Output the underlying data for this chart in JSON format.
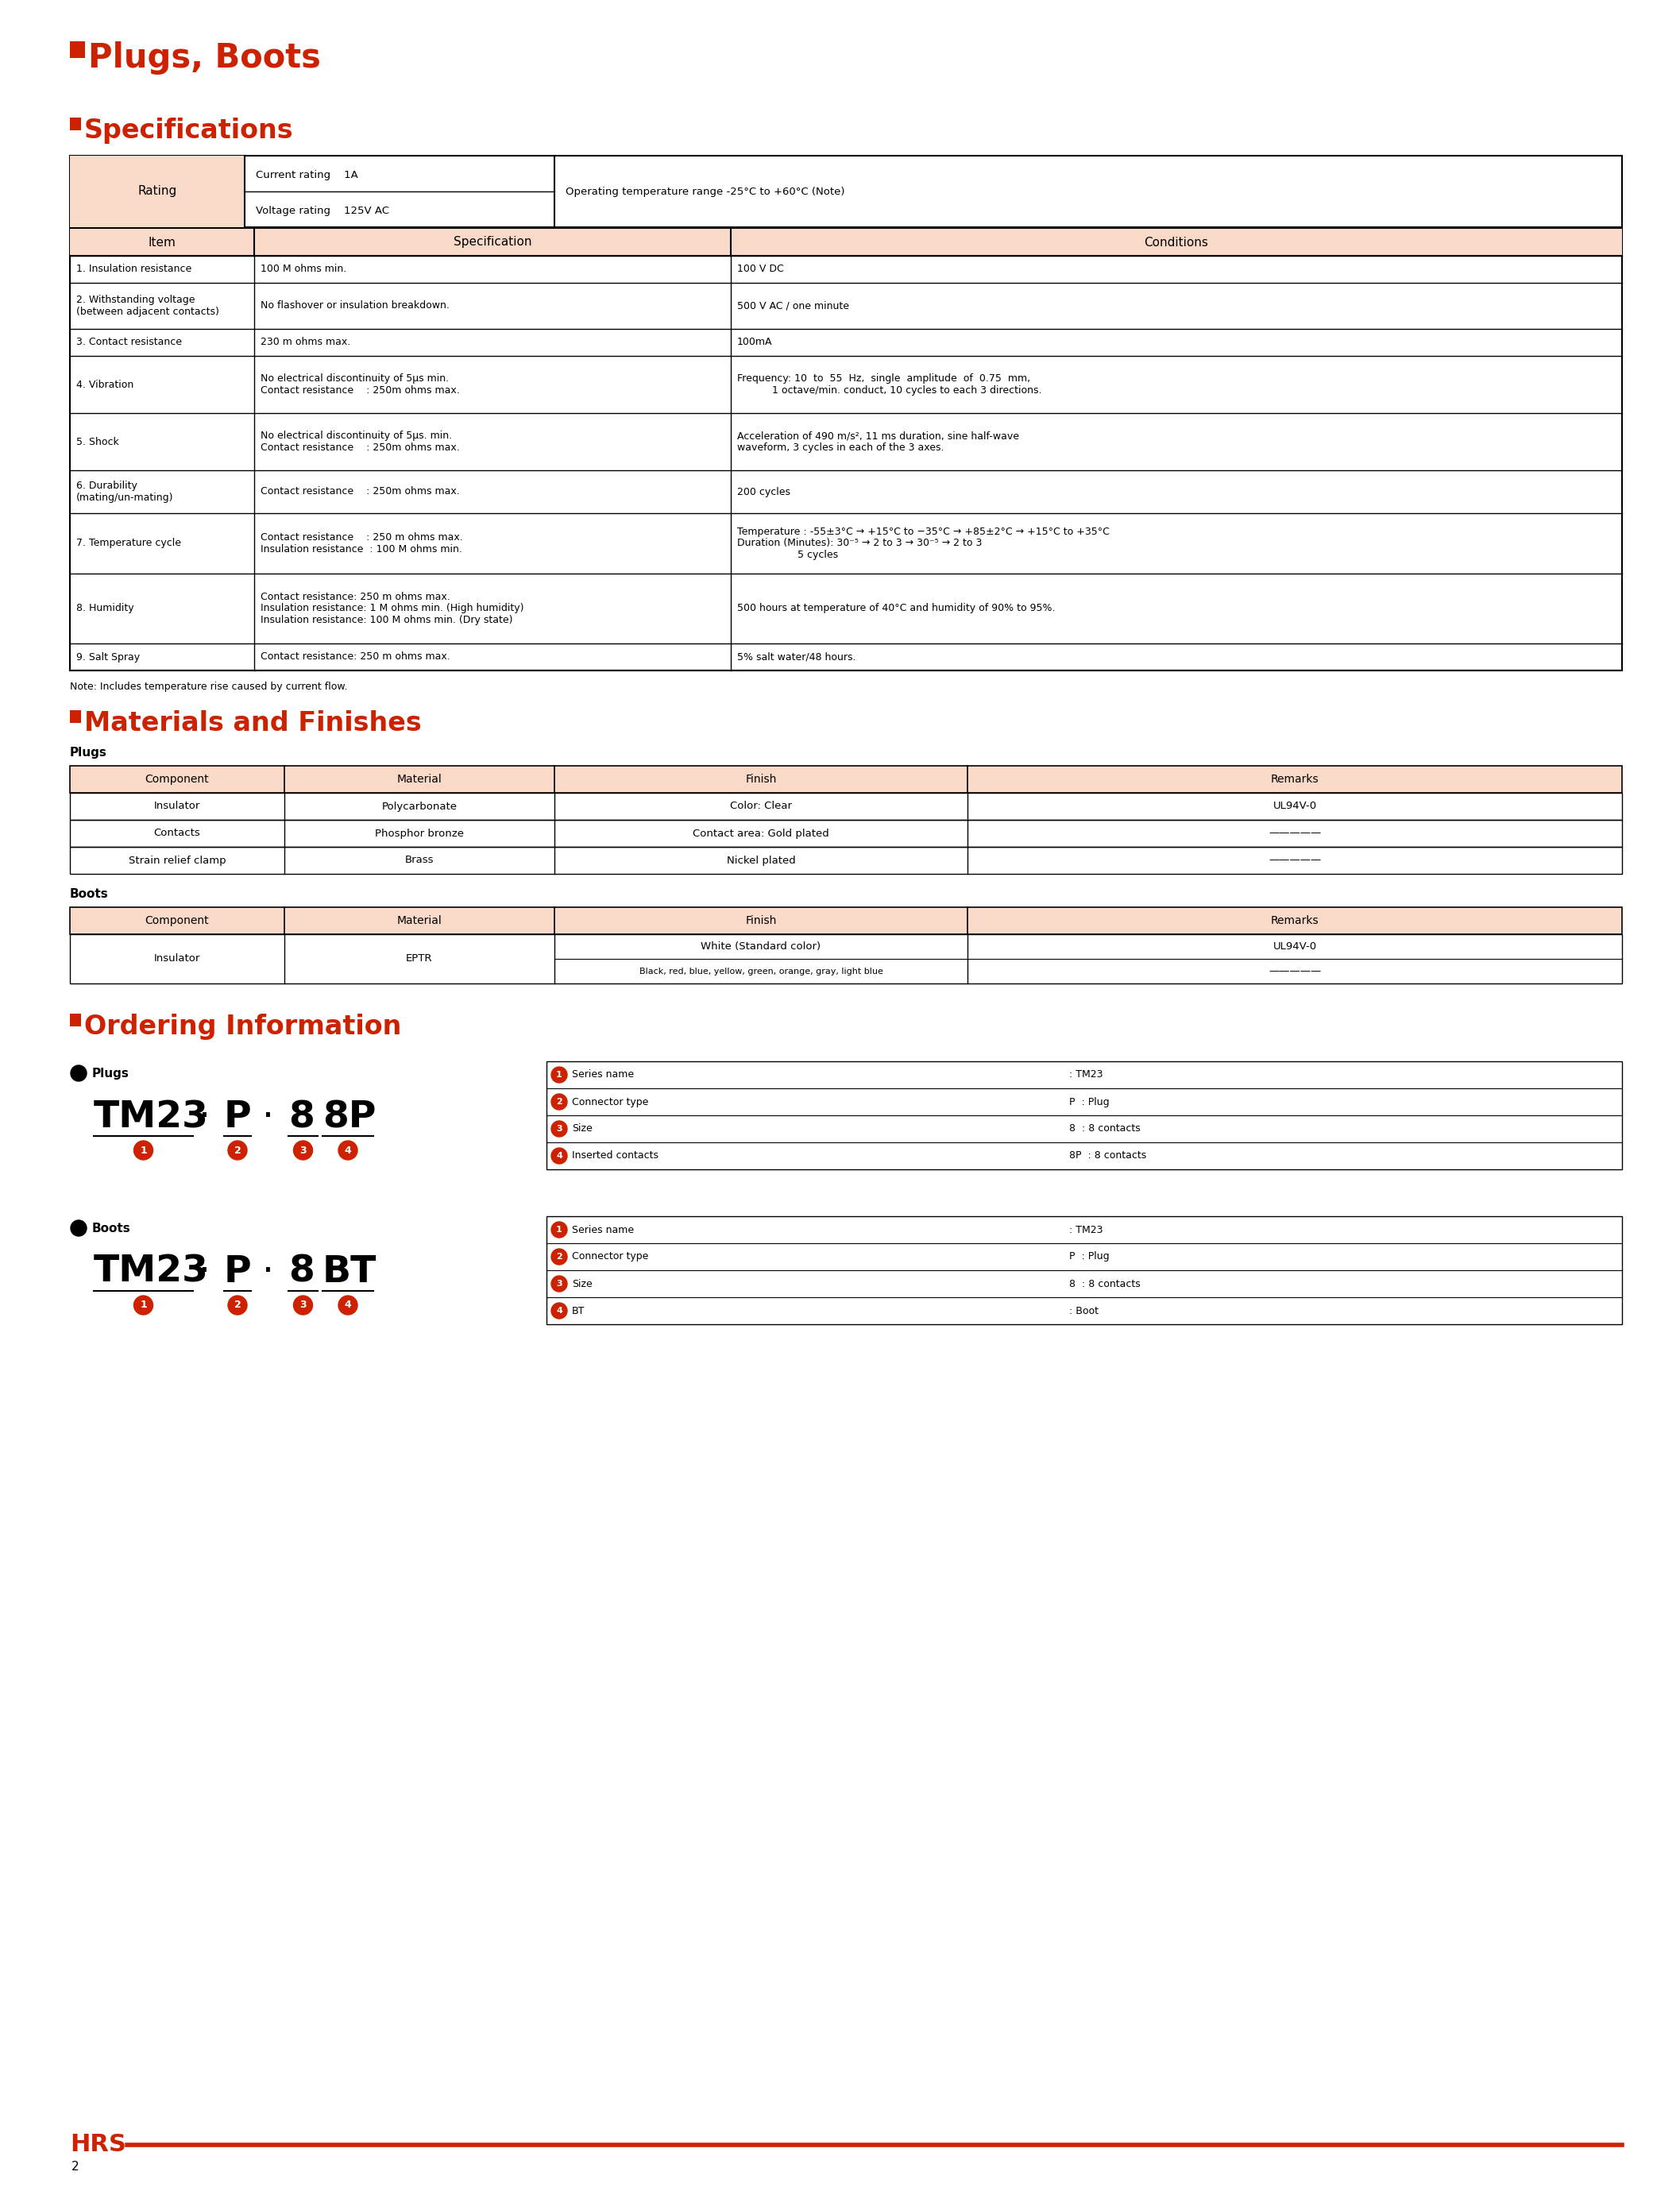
{
  "page_bg": "#ffffff",
  "accent_color": "#cc2200",
  "header_bg": "#f9d9c8",
  "title1": "Plugs, Boots",
  "title2": "Specifications",
  "title3": "Materials and Finishes",
  "title4": "Ordering Information",
  "rating_col3": "Operating temperature range -25°C to +60°C (Note)",
  "spec_rows": [
    {
      "item": "1. Insulation resistance",
      "spec": "100 M ohms min.",
      "cond": "100 V DC",
      "item_lines": 1,
      "spec_lines": 1,
      "cond_lines": 1
    },
    {
      "item": "2. Withstanding voltage\n(between adjacent contacts)",
      "spec": "No flashover or insulation breakdown.",
      "cond": "500 V AC / one minute",
      "item_lines": 2,
      "spec_lines": 1,
      "cond_lines": 1
    },
    {
      "item": "3. Contact resistance",
      "spec": "230 m ohms max.",
      "cond": "100mA",
      "item_lines": 1,
      "spec_lines": 1,
      "cond_lines": 1
    },
    {
      "item": "4. Vibration",
      "spec": "No electrical discontinuity of 5μs min.\nContact resistance    : 250m ohms max.",
      "cond": "Frequency: 10  to  55  Hz,  single  amplitude  of  0.75  mm,\n           1 octave/min. conduct, 10 cycles to each 3 directions.",
      "item_lines": 1,
      "spec_lines": 2,
      "cond_lines": 2
    },
    {
      "item": "5. Shock",
      "spec": "No electrical discontinuity of 5μs. min.\nContact resistance    : 250m ohms max.",
      "cond": "Acceleration of 490 m/s², 11 ms duration, sine half-wave\nwaveform, 3 cycles in each of the 3 axes.",
      "item_lines": 1,
      "spec_lines": 2,
      "cond_lines": 2
    },
    {
      "item": "6. Durability\n(mating/un-mating)",
      "spec": "Contact resistance    : 250m ohms max.",
      "cond": "200 cycles",
      "item_lines": 2,
      "spec_lines": 1,
      "cond_lines": 1
    },
    {
      "item": "7. Temperature cycle",
      "spec": "Contact resistance    : 250 m ohms max.\nInsulation resistance  : 100 M ohms min.",
      "cond": "Temperature : -55±3°C → +15°C to −35°C → +85±2°C → +15°C to +35°C\nDuration (Minutes): 30⁻⁵ → 2 to 3 → 30⁻⁵ → 2 to 3\n                   5 cycles",
      "item_lines": 1,
      "spec_lines": 2,
      "cond_lines": 3
    },
    {
      "item": "8. Humidity",
      "spec": "Contact resistance: 250 m ohms max.\nInsulation resistance: 1 M ohms min. (High humidity)\nInsulation resistance: 100 M ohms min. (Dry state)",
      "cond": "500 hours at temperature of 40°C and humidity of 90% to 95%.",
      "item_lines": 1,
      "spec_lines": 3,
      "cond_lines": 1
    },
    {
      "item": "9. Salt Spray",
      "spec": "Contact resistance: 250 m ohms max.",
      "cond": "5% salt water/48 hours.",
      "item_lines": 1,
      "spec_lines": 1,
      "cond_lines": 1
    }
  ],
  "note": "Note: Includes temperature rise caused by current flow.",
  "plugs_headers": [
    "Component",
    "Material",
    "Finish",
    "Remarks"
  ],
  "plugs_rows": [
    [
      "Insulator",
      "Polycarbonate",
      "Color: Clear",
      "UL94V-0"
    ],
    [
      "Contacts",
      "Phosphor bronze",
      "Contact area: Gold plated",
      "—————"
    ],
    [
      "Strain relief clamp",
      "Brass",
      "Nickel plated",
      "—————"
    ]
  ],
  "boots_headers": [
    "Component",
    "Material",
    "Finish",
    "Remarks"
  ],
  "plugs_info": [
    [
      ": TM23",
      ""
    ],
    [
      "P",
      ": Plug"
    ],
    [
      "8",
      ": 8 contacts"
    ],
    [
      "8P",
      ": 8 contacts"
    ]
  ],
  "plugs_info_labels": [
    "Series name",
    "Connector type",
    "Size",
    "Inserted contacts"
  ],
  "boots_info": [
    [
      ": TM23",
      ""
    ],
    [
      "P",
      ": Plug"
    ],
    [
      "8",
      ": 8 contacts"
    ],
    [
      "",
      ": Boot"
    ]
  ],
  "boots_info_labels": [
    "Series name",
    "Connector type",
    "Size",
    "BT"
  ],
  "footer_page": "2",
  "footer_logo": "HRS"
}
